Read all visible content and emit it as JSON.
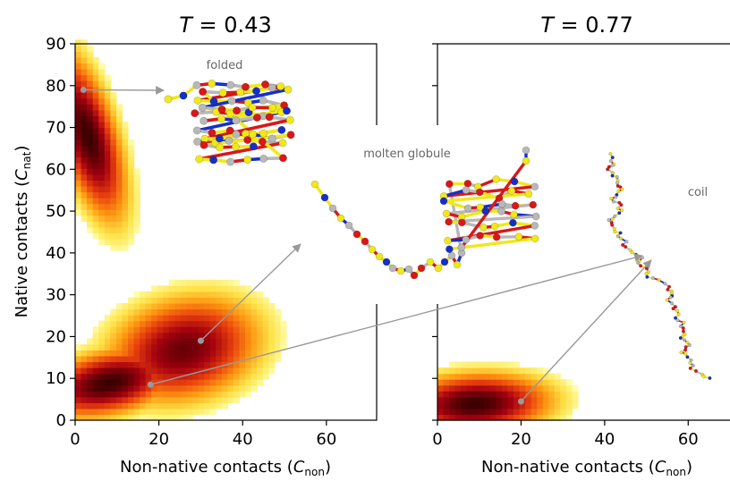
{
  "chart_data": [
    {
      "type": "heatmap",
      "title_var": "T",
      "title_eq": " = 0.43",
      "xlabel_main": "Non-native contacts (",
      "xlabel_sym": "C",
      "xlabel_sub": "non",
      "xlabel_close": ")",
      "ylabel_main": "Native contacts (",
      "ylabel_sym": "C",
      "ylabel_sub": "nat",
      "ylabel_close": ")",
      "xlim": [
        0,
        72
      ],
      "ylim": [
        0,
        90
      ],
      "xticks": [
        0,
        20,
        40,
        60
      ],
      "yticks": [
        0,
        10,
        20,
        30,
        40,
        50,
        60,
        70,
        80,
        90
      ],
      "colormap": [
        "#ffffb0",
        "#ffe34a",
        "#ff9a12",
        "#e8400e",
        "#a3000f",
        "#3a0000"
      ],
      "density_blobs": [
        {
          "cx": 3,
          "cy": 68,
          "sx": 5,
          "sy": 11,
          "rho": -0.6,
          "peak": 1.0
        },
        {
          "cx": 8,
          "cy": 9,
          "sx": 9,
          "sy": 4.5,
          "rho": 0.35,
          "peak": 1.0
        },
        {
          "cx": 26,
          "cy": 17,
          "sx": 10,
          "sy": 7,
          "rho": 0.2,
          "peak": 0.85
        }
      ],
      "annotation_points": [
        {
          "label": "folded",
          "x": 2,
          "y": 79
        },
        {
          "label": "molten globule",
          "x": 30,
          "y": 19
        },
        {
          "label": "coil",
          "x": 18,
          "y": 8.5
        }
      ],
      "annotation_labels": [
        "folded",
        "molten globule"
      ]
    },
    {
      "type": "heatmap",
      "title_var": "T",
      "title_eq": " = 0.77",
      "xlabel_main": "Non-native contacts (",
      "xlabel_sym": "C",
      "xlabel_sub": "non",
      "xlabel_close": ")",
      "xlim": [
        0,
        70
      ],
      "ylim": [
        0,
        90
      ],
      "xticks": [
        0,
        20,
        40,
        60
      ],
      "yticks": [
        0,
        10,
        20,
        30,
        40,
        50,
        60,
        70,
        80,
        90
      ],
      "density_blobs": [
        {
          "cx": 9,
          "cy": 4,
          "sx": 10,
          "sy": 4,
          "rho": 0.1,
          "peak": 1.0
        }
      ],
      "annotation_points": [
        {
          "label": "coil",
          "x": 20,
          "y": 4.5
        }
      ],
      "annotation_labels": [
        "coil"
      ]
    }
  ],
  "colors": {
    "arrow": "#999999",
    "bead_yellow": "#f0e81a",
    "bead_red": "#d81818",
    "bead_blue": "#1530c8",
    "bead_gray": "#b8b8b8",
    "bead_tan": "#d8b890"
  }
}
